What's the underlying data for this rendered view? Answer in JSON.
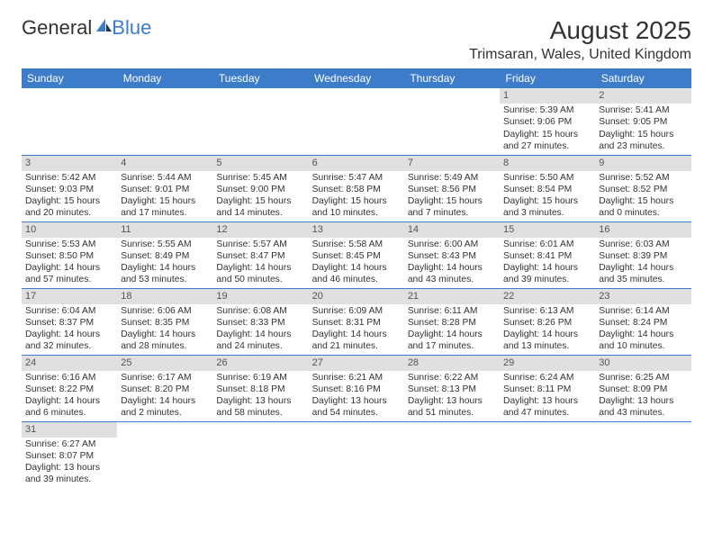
{
  "logo": {
    "part1": "General",
    "part2": "Blue"
  },
  "title": "August 2025",
  "location": "Trimsaran, Wales, United Kingdom",
  "colors": {
    "header_bg": "#3d7cc9",
    "header_text": "#ffffff",
    "daynum_bg": "#e0e0e0",
    "border": "#3d7cc9",
    "text": "#333333"
  },
  "days_of_week": [
    "Sunday",
    "Monday",
    "Tuesday",
    "Wednesday",
    "Thursday",
    "Friday",
    "Saturday"
  ],
  "weeks": [
    [
      null,
      null,
      null,
      null,
      null,
      {
        "n": "1",
        "sr": "5:39 AM",
        "ss": "9:06 PM",
        "dl": "Daylight: 15 hours and 27 minutes."
      },
      {
        "n": "2",
        "sr": "5:41 AM",
        "ss": "9:05 PM",
        "dl": "Daylight: 15 hours and 23 minutes."
      }
    ],
    [
      {
        "n": "3",
        "sr": "5:42 AM",
        "ss": "9:03 PM",
        "dl": "Daylight: 15 hours and 20 minutes."
      },
      {
        "n": "4",
        "sr": "5:44 AM",
        "ss": "9:01 PM",
        "dl": "Daylight: 15 hours and 17 minutes."
      },
      {
        "n": "5",
        "sr": "5:45 AM",
        "ss": "9:00 PM",
        "dl": "Daylight: 15 hours and 14 minutes."
      },
      {
        "n": "6",
        "sr": "5:47 AM",
        "ss": "8:58 PM",
        "dl": "Daylight: 15 hours and 10 minutes."
      },
      {
        "n": "7",
        "sr": "5:49 AM",
        "ss": "8:56 PM",
        "dl": "Daylight: 15 hours and 7 minutes."
      },
      {
        "n": "8",
        "sr": "5:50 AM",
        "ss": "8:54 PM",
        "dl": "Daylight: 15 hours and 3 minutes."
      },
      {
        "n": "9",
        "sr": "5:52 AM",
        "ss": "8:52 PM",
        "dl": "Daylight: 15 hours and 0 minutes."
      }
    ],
    [
      {
        "n": "10",
        "sr": "5:53 AM",
        "ss": "8:50 PM",
        "dl": "Daylight: 14 hours and 57 minutes."
      },
      {
        "n": "11",
        "sr": "5:55 AM",
        "ss": "8:49 PM",
        "dl": "Daylight: 14 hours and 53 minutes."
      },
      {
        "n": "12",
        "sr": "5:57 AM",
        "ss": "8:47 PM",
        "dl": "Daylight: 14 hours and 50 minutes."
      },
      {
        "n": "13",
        "sr": "5:58 AM",
        "ss": "8:45 PM",
        "dl": "Daylight: 14 hours and 46 minutes."
      },
      {
        "n": "14",
        "sr": "6:00 AM",
        "ss": "8:43 PM",
        "dl": "Daylight: 14 hours and 43 minutes."
      },
      {
        "n": "15",
        "sr": "6:01 AM",
        "ss": "8:41 PM",
        "dl": "Daylight: 14 hours and 39 minutes."
      },
      {
        "n": "16",
        "sr": "6:03 AM",
        "ss": "8:39 PM",
        "dl": "Daylight: 14 hours and 35 minutes."
      }
    ],
    [
      {
        "n": "17",
        "sr": "6:04 AM",
        "ss": "8:37 PM",
        "dl": "Daylight: 14 hours and 32 minutes."
      },
      {
        "n": "18",
        "sr": "6:06 AM",
        "ss": "8:35 PM",
        "dl": "Daylight: 14 hours and 28 minutes."
      },
      {
        "n": "19",
        "sr": "6:08 AM",
        "ss": "8:33 PM",
        "dl": "Daylight: 14 hours and 24 minutes."
      },
      {
        "n": "20",
        "sr": "6:09 AM",
        "ss": "8:31 PM",
        "dl": "Daylight: 14 hours and 21 minutes."
      },
      {
        "n": "21",
        "sr": "6:11 AM",
        "ss": "8:28 PM",
        "dl": "Daylight: 14 hours and 17 minutes."
      },
      {
        "n": "22",
        "sr": "6:13 AM",
        "ss": "8:26 PM",
        "dl": "Daylight: 14 hours and 13 minutes."
      },
      {
        "n": "23",
        "sr": "6:14 AM",
        "ss": "8:24 PM",
        "dl": "Daylight: 14 hours and 10 minutes."
      }
    ],
    [
      {
        "n": "24",
        "sr": "6:16 AM",
        "ss": "8:22 PM",
        "dl": "Daylight: 14 hours and 6 minutes."
      },
      {
        "n": "25",
        "sr": "6:17 AM",
        "ss": "8:20 PM",
        "dl": "Daylight: 14 hours and 2 minutes."
      },
      {
        "n": "26",
        "sr": "6:19 AM",
        "ss": "8:18 PM",
        "dl": "Daylight: 13 hours and 58 minutes."
      },
      {
        "n": "27",
        "sr": "6:21 AM",
        "ss": "8:16 PM",
        "dl": "Daylight: 13 hours and 54 minutes."
      },
      {
        "n": "28",
        "sr": "6:22 AM",
        "ss": "8:13 PM",
        "dl": "Daylight: 13 hours and 51 minutes."
      },
      {
        "n": "29",
        "sr": "6:24 AM",
        "ss": "8:11 PM",
        "dl": "Daylight: 13 hours and 47 minutes."
      },
      {
        "n": "30",
        "sr": "6:25 AM",
        "ss": "8:09 PM",
        "dl": "Daylight: 13 hours and 43 minutes."
      }
    ],
    [
      {
        "n": "31",
        "sr": "6:27 AM",
        "ss": "8:07 PM",
        "dl": "Daylight: 13 hours and 39 minutes."
      },
      null,
      null,
      null,
      null,
      null,
      null
    ]
  ],
  "labels": {
    "sunrise": "Sunrise:",
    "sunset": "Sunset:"
  }
}
